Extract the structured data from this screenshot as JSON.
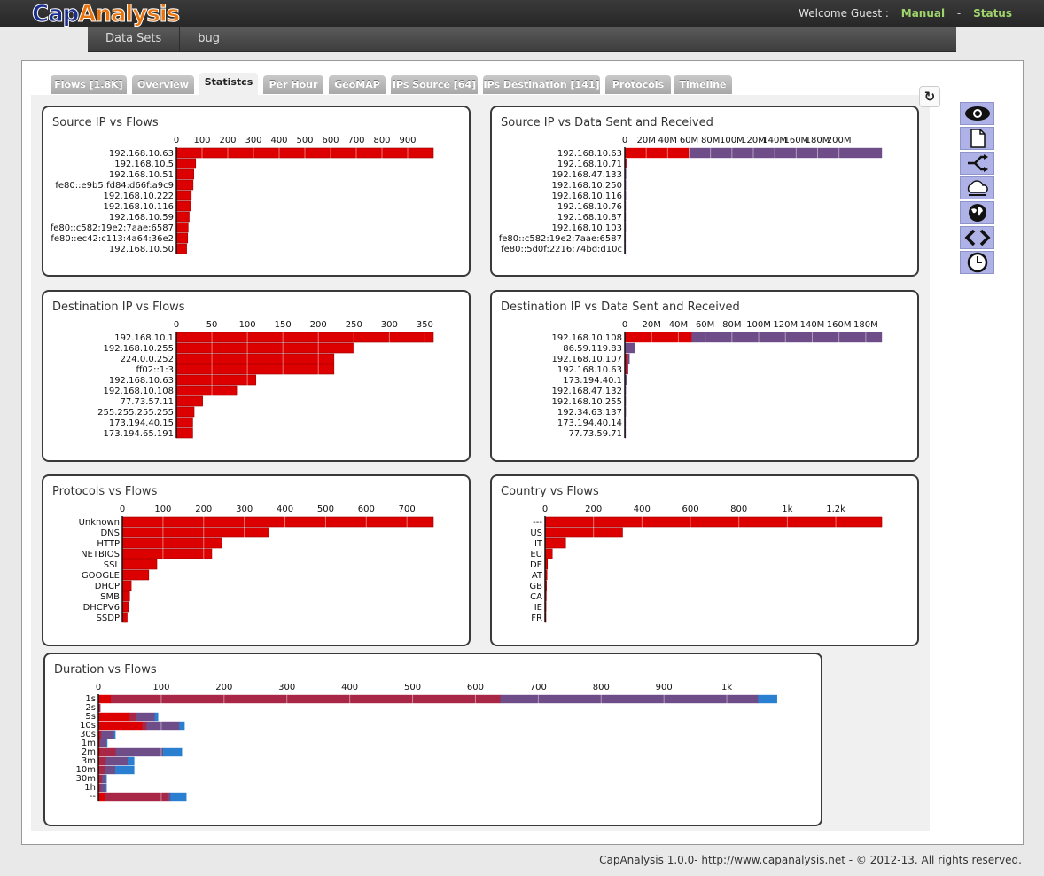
{
  "header": {
    "logo_text_1": "Cap",
    "logo_text_2": "Analysis",
    "welcome": "Welcome Guest :",
    "manual": "Manual",
    "separator": "-",
    "status": "Status"
  },
  "nav": {
    "items": [
      "Data Sets",
      "bug"
    ]
  },
  "tabs": [
    "Flows [1.8K]",
    "Overview",
    "Statistcs",
    "Per Hour",
    "GeoMAP",
    "IPs Source [64]",
    "IPs Destination [141]",
    "Protocols",
    "Timeline"
  ],
  "active_tab": "Statistcs",
  "sidebar_icons": [
    "eye-icon",
    "document-icon",
    "split-arrows-icon",
    "protocols-cloud-icon",
    "globe-icon",
    "code-brackets-icon",
    "clock-icon"
  ],
  "colors": {
    "flows": "#dd0000",
    "sent": "#dd0000",
    "received": "#6e4d89",
    "accent": "#9fd36b",
    "blue": "#2b7fd1"
  },
  "footer": "CapAnalysis 1.0.0- http://www.capanalysis.net - © 2012-13. All rights reserved.",
  "chart_data": [
    {
      "type": "bar",
      "title": "Source IP vs Flows",
      "categories": [
        "192.168.10.63",
        "192.168.10.5",
        "192.168.10.51",
        "fe80::e9b5:fd84:d66f:a9c9",
        "192.168.10.222",
        "192.168.10.116",
        "192.168.10.59",
        "fe80::c582:19e2:7aae:6587",
        "fe80::ec42:c113:4a64:36e2",
        "192.168.10.50"
      ],
      "values": [
        1000,
        75,
        68,
        65,
        58,
        55,
        50,
        46,
        44,
        40
      ],
      "xlim": [
        0,
        1000
      ],
      "ticks": [
        0,
        100,
        200,
        300,
        400,
        500,
        600,
        700,
        800,
        900
      ],
      "tick_labels": [
        "0",
        "100",
        "200",
        "300",
        "400",
        "500",
        "600",
        "700",
        "800",
        "900"
      ]
    },
    {
      "type": "bar",
      "title": "Source IP vs Data Sent and Received",
      "categories": [
        "192.168.10.63",
        "192.168.10.71",
        "192.168.47.133",
        "192.168.10.250",
        "192.168.10.116",
        "192.168.10.76",
        "192.168.10.87",
        "192.168.10.103",
        "fe80::c582:19e2:7aae:6587",
        "fe80::5d0f:2216:74bd:d10c"
      ],
      "series": [
        {
          "values": [
            60,
            1.5,
            0.5,
            0.3,
            0.3,
            0.2,
            0.2,
            0.2,
            0.1,
            0.1
          ]
        },
        {
          "values": [
            180,
            0.3,
            0.2,
            0.1,
            0.1,
            0.1,
            0.1,
            0.1,
            0.1,
            0.1
          ]
        }
      ],
      "xlim": [
        0,
        240
      ],
      "ticks": [
        0,
        20,
        40,
        60,
        80,
        100,
        120,
        140,
        160,
        180,
        200
      ],
      "tick_labels": [
        "0",
        "20M",
        "40M",
        "60M",
        "80M",
        "100M",
        "120M",
        "140M",
        "160M",
        "180M",
        "200M"
      ]
    },
    {
      "type": "bar",
      "title": "Destination IP vs Flows",
      "categories": [
        "192.168.10.1",
        "192.168.10.255",
        "224.0.0.252",
        "ff02::1:3",
        "192.168.10.63",
        "192.168.10.108",
        "77.73.57.11",
        "255.255.255.255",
        "173.194.40.15",
        "173.194.65.191"
      ],
      "values": [
        362,
        250,
        222,
        222,
        112,
        85,
        37,
        25,
        23,
        23
      ],
      "xlim": [
        0,
        362
      ],
      "ticks": [
        0,
        50,
        100,
        150,
        200,
        250,
        300,
        350
      ],
      "tick_labels": [
        "0",
        "50",
        "100",
        "150",
        "200",
        "250",
        "300",
        "350"
      ]
    },
    {
      "type": "bar",
      "title": "Destination IP vs Data Sent and Received",
      "categories": [
        "192.168.10.108",
        "86.59.119.83",
        "192.168.10.107",
        "192.168.10.63",
        "173.194.40.1",
        "192.168.47.132",
        "192.168.10.255",
        "192.34.63.137",
        "173.194.40.14",
        "77.73.59.71"
      ],
      "series": [
        {
          "values": [
            50,
            0.5,
            1.5,
            1.5,
            0.3,
            0.2,
            0.2,
            0.2,
            0.1,
            0.1
          ]
        },
        {
          "values": [
            142,
            7,
            2,
            1,
            1,
            0.5,
            0.5,
            0.5,
            0.5,
            0.5
          ]
        }
      ],
      "xlim": [
        0,
        192
      ],
      "ticks": [
        0,
        20,
        40,
        60,
        80,
        100,
        120,
        140,
        160,
        180
      ],
      "tick_labels": [
        "0",
        "20M",
        "40M",
        "60M",
        "80M",
        "100M",
        "120M",
        "140M",
        "160M",
        "180M"
      ]
    },
    {
      "type": "bar",
      "title": "Protocols vs Flows",
      "categories": [
        "Unknown",
        "DNS",
        "HTTP",
        "NETBIOS",
        "SSL",
        "GOOGLE",
        "DHCP",
        "SMB",
        "DHCPV6",
        "SSDP"
      ],
      "values": [
        765,
        360,
        245,
        220,
        85,
        65,
        22,
        18,
        15,
        12
      ],
      "xlim": [
        0,
        765
      ],
      "ticks": [
        0,
        100,
        200,
        300,
        400,
        500,
        600,
        700
      ],
      "tick_labels": [
        "0",
        "100",
        "200",
        "300",
        "400",
        "500",
        "600",
        "700"
      ]
    },
    {
      "type": "bar",
      "title": "Country vs Flows",
      "categories": [
        "---",
        "US",
        "IT",
        "EU",
        "DE",
        "AT",
        "GB",
        "CA",
        "IE",
        "FR"
      ],
      "values": [
        1390,
        320,
        85,
        30,
        10,
        8,
        6,
        5,
        4,
        3
      ],
      "xlim": [
        0,
        1390
      ],
      "ticks": [
        0,
        200,
        400,
        600,
        800,
        1000,
        1200
      ],
      "tick_labels": [
        "0",
        "200",
        "400",
        "600",
        "800",
        "1k",
        "1.2k"
      ]
    },
    {
      "type": "bar",
      "title": "Duration vs Flows",
      "categories": [
        "1s",
        "2s",
        "5s",
        "10s",
        "30s",
        "1m",
        "2m",
        "3m",
        "10m",
        "30m",
        "1h",
        "--"
      ],
      "series": [
        {
          "name": "",
          "values": [
            20,
            0,
            50,
            70,
            3,
            2,
            3,
            2,
            2,
            2,
            2,
            10
          ],
          "color": "#dd0000"
        },
        {
          "name": "",
          "values": [
            620,
            3,
            10,
            7,
            2,
            1,
            25,
            10,
            8,
            4,
            2,
            100
          ],
          "color": "#a82747"
        },
        {
          "name": "",
          "values": [
            410,
            0,
            30,
            52,
            20,
            10,
            75,
            35,
            17,
            6,
            8,
            5
          ],
          "color": "#6e4d89"
        },
        {
          "name": "",
          "values": [
            30,
            0,
            5,
            8,
            2,
            1,
            30,
            10,
            30,
            1,
            1,
            25
          ],
          "color": "#2b7fd1"
        }
      ],
      "xlim": [
        0,
        1100
      ],
      "ticks": [
        0,
        100,
        200,
        300,
        400,
        500,
        600,
        700,
        800,
        900,
        1000
      ],
      "tick_labels": [
        "0",
        "100",
        "200",
        "300",
        "400",
        "500",
        "600",
        "700",
        "800",
        "900",
        "1k"
      ]
    }
  ]
}
